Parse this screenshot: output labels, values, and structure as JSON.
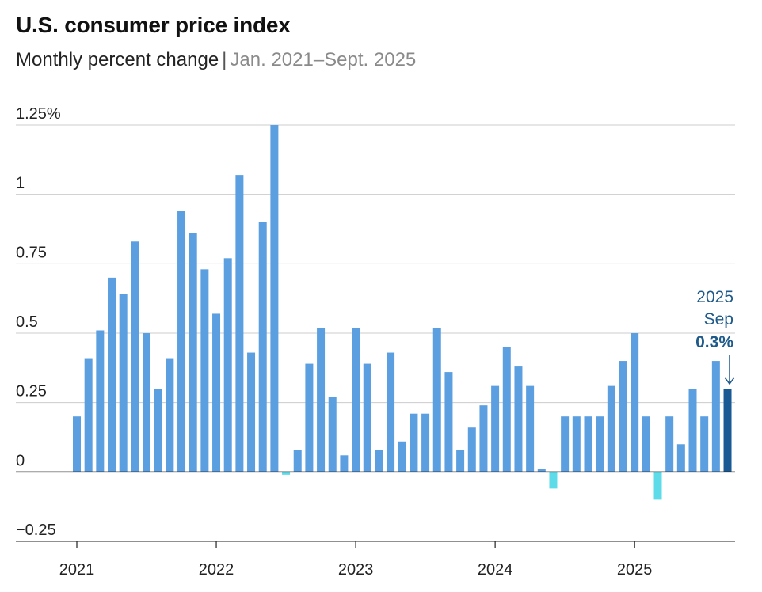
{
  "header": {
    "title": "U.S. consumer price index",
    "subtitle_main": "Monthly percent change",
    "subtitle_sep": "|",
    "subtitle_range": "Jan. 2021–Sept. 2025"
  },
  "annotation": {
    "year": "2025",
    "month": "Sep",
    "value": "0.3%"
  },
  "colors": {
    "positive": "#5b9fe1",
    "negative": "#5ddbe9",
    "highlight": "#1a5a94",
    "grid": "#cccccc",
    "axis": "#222222"
  },
  "chart_data": {
    "type": "bar",
    "title": "U.S. consumer price index",
    "subtitle": "Monthly percent change | Jan. 2021–Sept. 2025",
    "xlabel": "",
    "ylabel": "",
    "ylim": [
      -0.25,
      1.25
    ],
    "y_ticks": [
      -0.25,
      0,
      0.25,
      0.5,
      0.75,
      1,
      1.25
    ],
    "y_tick_labels": [
      "−0.25",
      "0",
      "0.25",
      "0.5",
      "0.75",
      "1",
      "1.25%"
    ],
    "x_tick_labels": [
      "2021",
      "2022",
      "2023",
      "2024",
      "2025"
    ],
    "categories": [
      "2021-01",
      "2021-02",
      "2021-03",
      "2021-04",
      "2021-05",
      "2021-06",
      "2021-07",
      "2021-08",
      "2021-09",
      "2021-10",
      "2021-11",
      "2021-12",
      "2022-01",
      "2022-02",
      "2022-03",
      "2022-04",
      "2022-05",
      "2022-06",
      "2022-07",
      "2022-08",
      "2022-09",
      "2022-10",
      "2022-11",
      "2022-12",
      "2023-01",
      "2023-02",
      "2023-03",
      "2023-04",
      "2023-05",
      "2023-06",
      "2023-07",
      "2023-08",
      "2023-09",
      "2023-10",
      "2023-11",
      "2023-12",
      "2024-01",
      "2024-02",
      "2024-03",
      "2024-04",
      "2024-05",
      "2024-06",
      "2024-07",
      "2024-08",
      "2024-09",
      "2024-10",
      "2024-11",
      "2024-12",
      "2025-01",
      "2025-02",
      "2025-03",
      "2025-04",
      "2025-05",
      "2025-06",
      "2025-07",
      "2025-08",
      "2025-09"
    ],
    "values": [
      0.2,
      0.41,
      0.51,
      0.7,
      0.64,
      0.83,
      0.5,
      0.3,
      0.41,
      0.94,
      0.86,
      0.73,
      0.57,
      0.77,
      1.07,
      0.43,
      0.9,
      1.25,
      -0.01,
      0.08,
      0.39,
      0.52,
      0.27,
      0.06,
      0.52,
      0.39,
      0.08,
      0.43,
      0.11,
      0.21,
      0.21,
      0.52,
      0.36,
      0.08,
      0.16,
      0.24,
      0.31,
      0.45,
      0.38,
      0.31,
      0.01,
      -0.06,
      0.2,
      0.2,
      0.2,
      0.2,
      0.31,
      0.4,
      0.5,
      0.2,
      -0.1,
      0.2,
      0.1,
      0.3,
      0.2,
      0.4,
      0.3
    ],
    "highlight_index": 56,
    "grid": true,
    "legend": "none"
  }
}
